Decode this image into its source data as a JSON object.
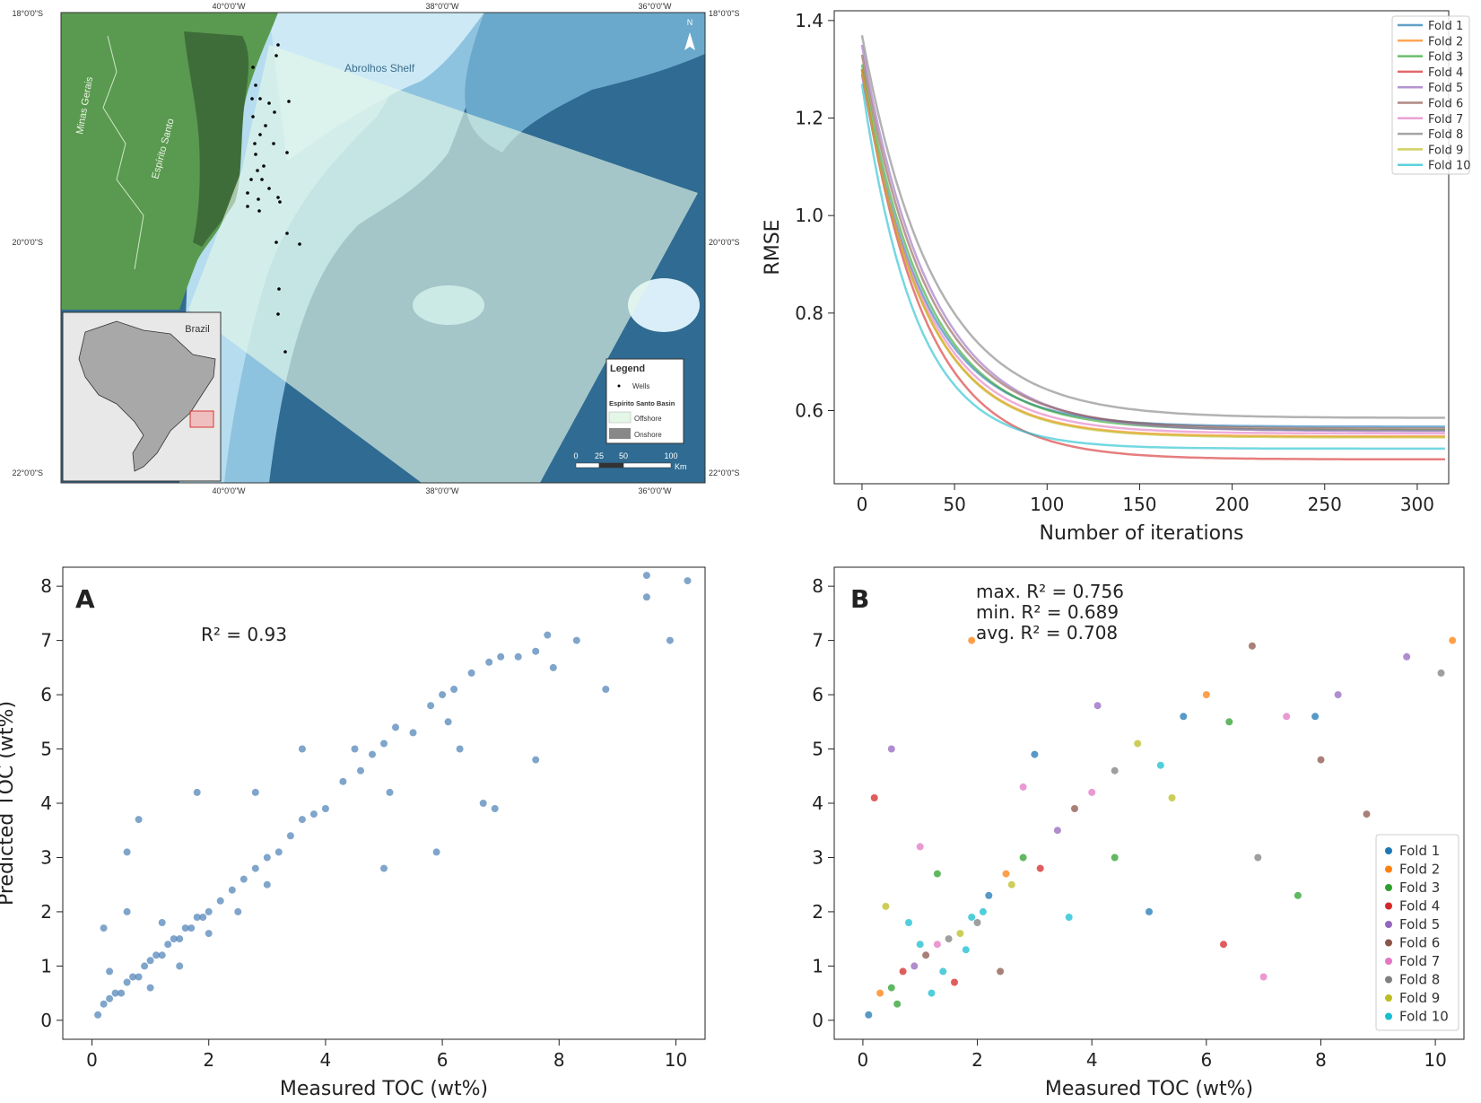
{
  "map": {
    "lat_labels": [
      "18°0'0\"S",
      "20°0'0\"S",
      "22°0'0\"S"
    ],
    "lon_labels": [
      "40°0'0\"W",
      "38°0'0\"W",
      "36°0'0\"W"
    ],
    "place_labels": {
      "minas": "Minas Gerais",
      "espirito": "Espírito Santo",
      "abrolhos": "Abrolhos Shelf",
      "brazil": "Brazil"
    },
    "north": "N",
    "legend": {
      "title": "Legend",
      "wells": "Wells",
      "basin": "Espírito Santo Basin",
      "offshore": "Offshore",
      "onshore": "Onshore"
    },
    "scalebar": {
      "labels": [
        "0",
        "25",
        "50",
        "100"
      ],
      "unit": "Km"
    },
    "colors": {
      "land": "#5a9a50",
      "onshore": "#3f6d3a",
      "ocean_deep": "#2f6b92",
      "ocean_shallow": "#cde9f6",
      "offshore": "#e4f7e6"
    }
  },
  "panelA": {
    "label": "A",
    "annotation": "R² = 0.93",
    "color": "#4a7fb5"
  },
  "panelB": {
    "label": "B",
    "annotations": [
      "max. R² = 0.756",
      "min. R² = 0.689",
      "avg. R² = 0.708"
    ]
  },
  "fold_colors": [
    "#1f77b4",
    "#ff7f0e",
    "#2ca02c",
    "#d62728",
    "#9467bd",
    "#8c564b",
    "#e377c2",
    "#7f7f7f",
    "#bcbd22",
    "#17becf"
  ],
  "chart_data": [
    {
      "type": "line",
      "xlabel": "Number of iterations",
      "ylabel": "RMSE",
      "xlim": [
        -15,
        317
      ],
      "ylim": [
        0.45,
        1.42
      ],
      "xticks": [
        0,
        50,
        100,
        150,
        200,
        250,
        300
      ],
      "yticks": [
        0.6,
        0.8,
        1.0,
        1.2,
        1.4
      ],
      "legend_position": "top-right",
      "x_max": 315,
      "series": [
        {
          "name": "Fold 1",
          "start": 1.29,
          "end": 0.567,
          "rate": 0.03
        },
        {
          "name": "Fold 2",
          "start": 1.3,
          "end": 0.547,
          "rate": 0.031
        },
        {
          "name": "Fold 3",
          "start": 1.31,
          "end": 0.56,
          "rate": 0.029
        },
        {
          "name": "Fold 4",
          "start": 1.3,
          "end": 0.5,
          "rate": 0.03
        },
        {
          "name": "Fold 5",
          "start": 1.35,
          "end": 0.558,
          "rate": 0.027
        },
        {
          "name": "Fold 6",
          "start": 1.33,
          "end": 0.563,
          "rate": 0.028
        },
        {
          "name": "Fold 7",
          "start": 1.29,
          "end": 0.553,
          "rate": 0.03
        },
        {
          "name": "Fold 8",
          "start": 1.37,
          "end": 0.585,
          "rate": 0.026
        },
        {
          "name": "Fold 9",
          "start": 1.3,
          "end": 0.545,
          "rate": 0.031
        },
        {
          "name": "Fold 10",
          "start": 1.27,
          "end": 0.522,
          "rate": 0.035
        }
      ]
    },
    {
      "type": "scatter",
      "xlabel": "Measured TOC (wt%)",
      "ylabel": "Predicted TOC (wt%)",
      "xlim": [
        -0.5,
        10.5
      ],
      "ylim": [
        -0.35,
        8.35
      ],
      "xticks": [
        0,
        2,
        4,
        6,
        8,
        10
      ],
      "yticks": [
        0,
        1,
        2,
        3,
        4,
        5,
        6,
        7,
        8
      ],
      "r2": 0.93,
      "points": [
        [
          0.1,
          0.1
        ],
        [
          0.2,
          0.3
        ],
        [
          0.3,
          0.4
        ],
        [
          0.4,
          0.5
        ],
        [
          0.5,
          0.5
        ],
        [
          0.6,
          0.7
        ],
        [
          0.7,
          0.8
        ],
        [
          0.8,
          0.8
        ],
        [
          0.9,
          1.0
        ],
        [
          1.0,
          1.1
        ],
        [
          1.1,
          1.2
        ],
        [
          1.2,
          1.2
        ],
        [
          1.3,
          1.4
        ],
        [
          1.4,
          1.5
        ],
        [
          1.5,
          1.5
        ],
        [
          1.6,
          1.7
        ],
        [
          1.7,
          1.7
        ],
        [
          1.8,
          1.9
        ],
        [
          1.9,
          1.9
        ],
        [
          2.0,
          2.0
        ],
        [
          2.2,
          2.2
        ],
        [
          2.4,
          2.4
        ],
        [
          2.6,
          2.6
        ],
        [
          2.8,
          2.8
        ],
        [
          3.0,
          3.0
        ],
        [
          3.2,
          3.1
        ],
        [
          3.4,
          3.4
        ],
        [
          3.6,
          3.7
        ],
        [
          3.8,
          3.8
        ],
        [
          4.0,
          3.9
        ],
        [
          4.3,
          4.4
        ],
        [
          4.6,
          4.6
        ],
        [
          4.8,
          4.9
        ],
        [
          5.0,
          5.1
        ],
        [
          5.2,
          5.4
        ],
        [
          5.5,
          5.3
        ],
        [
          5.8,
          5.8
        ],
        [
          6.0,
          6.0
        ],
        [
          6.2,
          6.1
        ],
        [
          6.5,
          6.4
        ],
        [
          6.8,
          6.6
        ],
        [
          7.0,
          6.7
        ],
        [
          7.3,
          6.7
        ],
        [
          7.6,
          6.8
        ],
        [
          7.8,
          7.1
        ],
        [
          8.3,
          7.0
        ],
        [
          8.8,
          6.1
        ],
        [
          9.5,
          8.2
        ],
        [
          9.5,
          7.8
        ],
        [
          9.9,
          7.0
        ],
        [
          10.2,
          8.1
        ],
        [
          0.2,
          1.7
        ],
        [
          0.6,
          2.0
        ],
        [
          0.8,
          3.7
        ],
        [
          0.6,
          3.1
        ],
        [
          1.8,
          4.2
        ],
        [
          2.8,
          4.2
        ],
        [
          3.6,
          5.0
        ],
        [
          5.0,
          2.8
        ],
        [
          5.9,
          3.1
        ],
        [
          6.7,
          4.0
        ],
        [
          6.9,
          3.9
        ],
        [
          7.6,
          4.8
        ],
        [
          1.0,
          0.6
        ],
        [
          1.5,
          1.0
        ],
        [
          2.0,
          1.6
        ],
        [
          2.5,
          2.0
        ],
        [
          3.0,
          2.5
        ],
        [
          0.3,
          0.9
        ],
        [
          1.2,
          1.8
        ],
        [
          4.5,
          5.0
        ],
        [
          5.1,
          4.2
        ],
        [
          6.1,
          5.5
        ],
        [
          6.3,
          5.0
        ],
        [
          7.9,
          6.5
        ]
      ]
    },
    {
      "type": "scatter",
      "xlabel": "Measured TOC (wt%)",
      "ylabel": "",
      "xlim": [
        -0.5,
        10.5
      ],
      "ylim": [
        -0.35,
        8.35
      ],
      "xticks": [
        0,
        2,
        4,
        6,
        8,
        10
      ],
      "yticks": [
        0,
        1,
        2,
        3,
        4,
        5,
        6,
        7,
        8
      ],
      "legend_position": "bottom-right",
      "legend": [
        "Fold 1",
        "Fold 2",
        "Fold 3",
        "Fold 4",
        "Fold 5",
        "Fold 6",
        "Fold 7",
        "Fold 8",
        "Fold 9",
        "Fold 10"
      ],
      "r2": {
        "max": 0.756,
        "min": 0.689,
        "avg": 0.708
      },
      "points": [
        [
          0.1,
          0.1,
          0
        ],
        [
          0.3,
          0.5,
          1
        ],
        [
          0.5,
          0.6,
          2
        ],
        [
          0.7,
          0.9,
          3
        ],
        [
          0.9,
          1.0,
          4
        ],
        [
          1.1,
          1.2,
          5
        ],
        [
          1.3,
          1.4,
          6
        ],
        [
          1.5,
          1.5,
          7
        ],
        [
          1.7,
          1.6,
          8
        ],
        [
          1.9,
          1.9,
          9
        ],
        [
          2.2,
          2.3,
          0
        ],
        [
          2.5,
          2.7,
          1
        ],
        [
          2.8,
          3.0,
          2
        ],
        [
          3.1,
          2.8,
          3
        ],
        [
          3.4,
          3.5,
          4
        ],
        [
          3.7,
          3.9,
          5
        ],
        [
          4.0,
          4.2,
          6
        ],
        [
          4.4,
          4.6,
          7
        ],
        [
          4.8,
          5.1,
          8
        ],
        [
          5.2,
          4.7,
          9
        ],
        [
          5.6,
          5.6,
          0
        ],
        [
          6.0,
          6.0,
          1
        ],
        [
          6.4,
          5.5,
          2
        ],
        [
          6.8,
          6.9,
          5
        ],
        [
          7.4,
          5.6,
          6
        ],
        [
          7.9,
          5.6,
          0
        ],
        [
          8.3,
          6.0,
          4
        ],
        [
          8.8,
          3.8,
          5
        ],
        [
          9.5,
          6.7,
          4
        ],
        [
          10.1,
          6.4,
          7
        ],
        [
          10.3,
          7.0,
          1
        ],
        [
          1.9,
          7.0,
          1
        ],
        [
          0.2,
          4.1,
          3
        ],
        [
          0.5,
          5.0,
          4
        ],
        [
          1.0,
          3.2,
          6
        ],
        [
          2.6,
          2.5,
          8
        ],
        [
          3.6,
          1.9,
          9
        ],
        [
          4.4,
          3.0,
          2
        ],
        [
          5.0,
          2.0,
          0
        ],
        [
          6.3,
          1.4,
          3
        ],
        [
          7.0,
          0.8,
          6
        ],
        [
          7.6,
          2.3,
          2
        ],
        [
          6.9,
          3.0,
          7
        ],
        [
          8.0,
          4.8,
          5
        ],
        [
          3.0,
          4.9,
          0
        ],
        [
          2.8,
          4.3,
          6
        ],
        [
          4.1,
          5.8,
          4
        ],
        [
          5.4,
          4.1,
          8
        ],
        [
          0.4,
          2.1,
          8
        ],
        [
          1.3,
          2.7,
          2
        ],
        [
          0.8,
          1.8,
          9
        ],
        [
          1.6,
          0.7,
          3
        ],
        [
          2.0,
          1.8,
          7
        ],
        [
          2.4,
          0.9,
          5
        ],
        [
          1.2,
          0.5,
          9
        ],
        [
          0.6,
          0.3,
          2
        ],
        [
          1.8,
          1.3,
          9
        ],
        [
          1.4,
          0.9,
          9
        ],
        [
          1.0,
          1.4,
          9
        ],
        [
          2.1,
          2.0,
          9
        ]
      ]
    }
  ]
}
